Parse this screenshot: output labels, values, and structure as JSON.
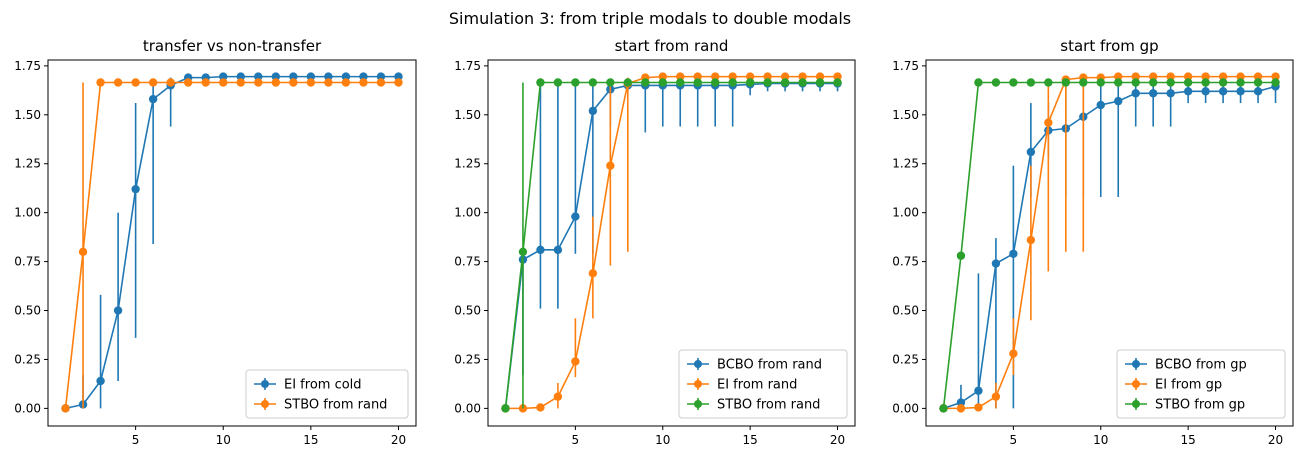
{
  "figure": {
    "suptitle": "Simulation 3: from triple modals to double modals"
  },
  "colors": {
    "blue": "#1f77b4",
    "orange": "#ff7f0e",
    "green": "#2ca02c"
  },
  "chart_data": [
    {
      "type": "line",
      "error_bars": true,
      "title": "transfer vs non-transfer",
      "xlim": [
        0,
        21
      ],
      "ylim": [
        -0.09,
        1.78
      ],
      "xticks": [
        5,
        10,
        15,
        20
      ],
      "yticks": [
        0.0,
        0.25,
        0.5,
        0.75,
        1.0,
        1.25,
        1.5,
        1.75
      ],
      "legend_position": "lower-right",
      "grid": false,
      "x": [
        1,
        2,
        3,
        4,
        5,
        6,
        7,
        8,
        9,
        10,
        11,
        12,
        13,
        14,
        15,
        16,
        17,
        18,
        19,
        20
      ],
      "series": [
        {
          "name": "EI from cold",
          "color": "#1f77b4",
          "values": [
            0.0,
            0.02,
            0.14,
            0.5,
            1.12,
            1.58,
            1.65,
            1.69,
            1.69,
            1.695,
            1.695,
            1.695,
            1.695,
            1.695,
            1.695,
            1.695,
            1.695,
            1.695,
            1.695,
            1.695
          ],
          "err_low": [
            0.0,
            0.0,
            0.0,
            0.14,
            0.36,
            0.84,
            1.44,
            1.69,
            1.69,
            1.695,
            1.695,
            1.695,
            1.695,
            1.695,
            1.695,
            1.695,
            1.695,
            1.695,
            1.695,
            1.695
          ],
          "err_high": [
            0.0,
            0.17,
            0.58,
            1.0,
            1.56,
            1.66,
            1.69,
            1.69,
            1.69,
            1.695,
            1.695,
            1.695,
            1.695,
            1.695,
            1.695,
            1.695,
            1.695,
            1.695,
            1.695,
            1.695
          ]
        },
        {
          "name": "STBO from rand",
          "color": "#ff7f0e",
          "values": [
            0.0,
            0.8,
            1.665,
            1.665,
            1.665,
            1.665,
            1.665,
            1.665,
            1.665,
            1.665,
            1.665,
            1.665,
            1.665,
            1.665,
            1.665,
            1.665,
            1.665,
            1.665,
            1.665,
            1.665
          ],
          "err_low": [
            0.0,
            0.0,
            1.665,
            1.665,
            1.665,
            1.665,
            1.665,
            1.665,
            1.665,
            1.665,
            1.665,
            1.665,
            1.665,
            1.665,
            1.665,
            1.665,
            1.665,
            1.665,
            1.665,
            1.665
          ],
          "err_high": [
            0.0,
            1.665,
            1.665,
            1.665,
            1.665,
            1.665,
            1.665,
            1.665,
            1.665,
            1.665,
            1.665,
            1.665,
            1.665,
            1.665,
            1.665,
            1.665,
            1.665,
            1.665,
            1.665,
            1.665
          ]
        }
      ]
    },
    {
      "type": "line",
      "error_bars": true,
      "title": "start from rand",
      "xlim": [
        0,
        21
      ],
      "ylim": [
        -0.09,
        1.78
      ],
      "xticks": [
        5,
        10,
        15,
        20
      ],
      "yticks": [
        0.0,
        0.25,
        0.5,
        0.75,
        1.0,
        1.25,
        1.5,
        1.75
      ],
      "legend_position": "lower-right",
      "grid": false,
      "x": [
        1,
        2,
        3,
        4,
        5,
        6,
        7,
        8,
        9,
        10,
        11,
        12,
        13,
        14,
        15,
        16,
        17,
        18,
        19,
        20
      ],
      "series": [
        {
          "name": "BCBO from rand",
          "color": "#1f77b4",
          "values": [
            0.0,
            0.76,
            0.81,
            0.81,
            0.98,
            1.52,
            1.63,
            1.65,
            1.65,
            1.65,
            1.65,
            1.65,
            1.65,
            1.65,
            1.655,
            1.66,
            1.66,
            1.66,
            1.66,
            1.66
          ],
          "err_low": [
            0.0,
            0.17,
            0.51,
            0.51,
            0.79,
            0.79,
            1.44,
            1.65,
            1.41,
            1.44,
            1.44,
            1.44,
            1.44,
            1.44,
            1.6,
            1.62,
            1.62,
            1.62,
            1.62,
            1.62
          ],
          "err_high": [
            0.0,
            0.8,
            1.665,
            1.665,
            1.665,
            1.665,
            1.665,
            1.665,
            1.665,
            1.665,
            1.665,
            1.665,
            1.665,
            1.665,
            1.665,
            1.665,
            1.665,
            1.665,
            1.665,
            1.665
          ]
        },
        {
          "name": "EI from rand",
          "color": "#ff7f0e",
          "values": [
            0.0,
            0.0,
            0.005,
            0.06,
            0.24,
            0.69,
            1.24,
            1.66,
            1.69,
            1.695,
            1.695,
            1.695,
            1.695,
            1.695,
            1.695,
            1.695,
            1.695,
            1.695,
            1.695,
            1.695
          ],
          "err_low": [
            0.0,
            0.0,
            0.0,
            0.0,
            0.16,
            0.46,
            0.73,
            0.8,
            1.69,
            1.695,
            1.695,
            1.695,
            1.695,
            1.695,
            1.695,
            1.695,
            1.695,
            1.695,
            1.695,
            1.695
          ],
          "err_high": [
            0.0,
            0.0,
            0.02,
            0.13,
            0.46,
            0.98,
            1.66,
            1.69,
            1.69,
            1.695,
            1.695,
            1.695,
            1.695,
            1.695,
            1.695,
            1.695,
            1.695,
            1.695,
            1.695,
            1.695
          ]
        },
        {
          "name": "STBO from rand",
          "color": "#2ca02c",
          "values": [
            0.0,
            0.8,
            1.665,
            1.665,
            1.665,
            1.665,
            1.665,
            1.665,
            1.665,
            1.665,
            1.665,
            1.665,
            1.665,
            1.665,
            1.665,
            1.665,
            1.665,
            1.665,
            1.665,
            1.665
          ],
          "err_low": [
            0.0,
            0.0,
            1.665,
            1.665,
            1.665,
            1.665,
            1.665,
            1.665,
            1.665,
            1.665,
            1.665,
            1.665,
            1.665,
            1.665,
            1.665,
            1.665,
            1.665,
            1.665,
            1.665,
            1.665
          ],
          "err_high": [
            0.0,
            1.665,
            1.665,
            1.665,
            1.665,
            1.665,
            1.665,
            1.665,
            1.665,
            1.665,
            1.665,
            1.665,
            1.665,
            1.665,
            1.665,
            1.665,
            1.665,
            1.665,
            1.665,
            1.665
          ]
        }
      ]
    },
    {
      "type": "line",
      "error_bars": true,
      "title": "start from gp",
      "xlim": [
        0,
        21
      ],
      "ylim": [
        -0.09,
        1.78
      ],
      "xticks": [
        5,
        10,
        15,
        20
      ],
      "yticks": [
        0.0,
        0.25,
        0.5,
        0.75,
        1.0,
        1.25,
        1.5,
        1.75
      ],
      "legend_position": "lower-right",
      "grid": false,
      "x": [
        1,
        2,
        3,
        4,
        5,
        6,
        7,
        8,
        9,
        10,
        11,
        12,
        13,
        14,
        15,
        16,
        17,
        18,
        19,
        20
      ],
      "series": [
        {
          "name": "BCBO from gp",
          "color": "#1f77b4",
          "values": [
            0.0,
            0.03,
            0.09,
            0.74,
            0.79,
            1.31,
            1.42,
            1.43,
            1.49,
            1.55,
            1.57,
            1.61,
            1.61,
            1.61,
            1.62,
            1.62,
            1.62,
            1.62,
            1.62,
            1.645
          ],
          "err_low": [
            0.0,
            0.0,
            0.0,
            0.0,
            0.0,
            1.08,
            1.28,
            1.08,
            1.08,
            1.08,
            1.08,
            1.44,
            1.44,
            1.44,
            1.56,
            1.56,
            1.56,
            1.56,
            1.56,
            1.56
          ],
          "err_high": [
            0.0,
            0.12,
            0.69,
            0.87,
            1.24,
            1.56,
            1.56,
            1.665,
            1.665,
            1.665,
            1.665,
            1.665,
            1.665,
            1.665,
            1.665,
            1.665,
            1.665,
            1.665,
            1.665,
            1.665
          ]
        },
        {
          "name": "EI from gp",
          "color": "#ff7f0e",
          "values": [
            0.0,
            0.0,
            0.005,
            0.06,
            0.28,
            0.86,
            1.46,
            1.68,
            1.69,
            1.69,
            1.695,
            1.695,
            1.695,
            1.695,
            1.695,
            1.695,
            1.695,
            1.695,
            1.695,
            1.695
          ],
          "err_low": [
            0.0,
            0.0,
            0.0,
            0.0,
            0.17,
            0.45,
            0.7,
            0.8,
            0.8,
            1.69,
            1.695,
            1.695,
            1.695,
            1.695,
            1.695,
            1.695,
            1.695,
            1.695,
            1.695,
            1.695
          ],
          "err_high": [
            0.0,
            0.0,
            0.02,
            0.13,
            0.46,
            1.24,
            1.66,
            1.69,
            1.69,
            1.69,
            1.695,
            1.695,
            1.695,
            1.695,
            1.695,
            1.695,
            1.695,
            1.695,
            1.695,
            1.695
          ]
        },
        {
          "name": "STBO from gp",
          "color": "#2ca02c",
          "values": [
            0.0,
            0.78,
            1.665,
            1.665,
            1.665,
            1.665,
            1.665,
            1.665,
            1.665,
            1.665,
            1.665,
            1.665,
            1.665,
            1.665,
            1.665,
            1.665,
            1.665,
            1.665,
            1.665,
            1.665
          ],
          "err_low": [
            0.0,
            0.78,
            1.665,
            1.665,
            1.665,
            1.665,
            1.665,
            1.665,
            1.665,
            1.665,
            1.665,
            1.665,
            1.665,
            1.665,
            1.665,
            1.665,
            1.665,
            1.665,
            1.665,
            1.665
          ],
          "err_high": [
            0.0,
            0.78,
            1.665,
            1.665,
            1.665,
            1.665,
            1.665,
            1.665,
            1.665,
            1.665,
            1.665,
            1.665,
            1.665,
            1.665,
            1.665,
            1.665,
            1.665,
            1.665,
            1.665,
            1.665
          ]
        }
      ]
    }
  ]
}
